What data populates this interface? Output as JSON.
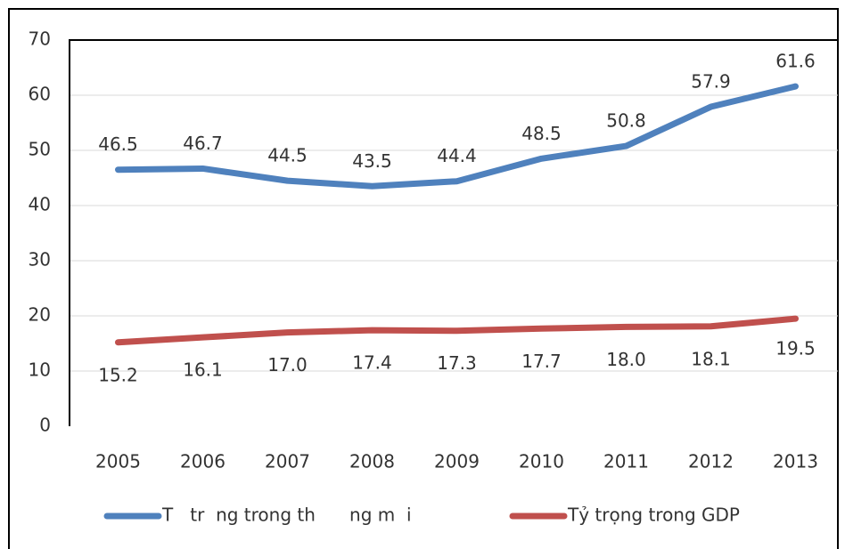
{
  "chart_data": {
    "type": "line",
    "categories": [
      "2005",
      "2006",
      "2007",
      "2008",
      "2009",
      "2010",
      "2011",
      "2012",
      "2013"
    ],
    "series": [
      {
        "name": "T   tr  ng trong th      ng m  i",
        "color": "#4f81bd",
        "values": [
          46.5,
          46.7,
          44.5,
          43.5,
          44.4,
          48.5,
          50.8,
          57.9,
          61.6
        ]
      },
      {
        "name": "Tỷ trọng trong GDP",
        "color": "#c0504d",
        "values": [
          15.2,
          16.1,
          17,
          17.4,
          17.3,
          17.7,
          18,
          18.1,
          19.5
        ],
        "value_labels": [
          "15.2",
          "16.1",
          "17.0",
          "17.4",
          "17.3",
          "17.7",
          "18.0",
          "18.1",
          "19.5"
        ]
      }
    ],
    "ylim": [
      0,
      70
    ],
    "yticks": [
      0,
      10,
      20,
      30,
      40,
      50,
      60,
      70
    ],
    "grid": true,
    "legend": "bottom"
  }
}
